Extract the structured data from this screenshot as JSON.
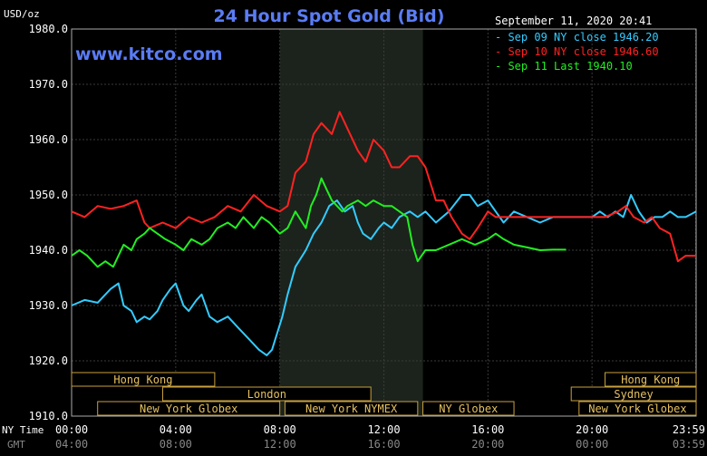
{
  "chart_data": {
    "type": "line",
    "title": "24 Hour Spot Gold (Bid)",
    "unit_label": "USD/oz",
    "watermark": "www.kitco.com",
    "timestamp": "September 11, 2020 20:41",
    "ylim": [
      1910,
      1980
    ],
    "y_ticks": [
      "1980.0",
      "1970.0",
      "1960.0",
      "1950.0",
      "1940.0",
      "1930.0",
      "1920.0",
      "1910.0"
    ],
    "y_tick_values": [
      1980,
      1970,
      1960,
      1950,
      1940,
      1930,
      1920,
      1910
    ],
    "x_row1_label": "NY Time",
    "x_row2_label": "GMT",
    "x_ticks_ny": [
      "00:00",
      "04:00",
      "08:00",
      "12:00",
      "16:00",
      "20:00",
      "23:59"
    ],
    "x_ticks_gmt": [
      "04:00",
      "08:00",
      "12:00",
      "16:00",
      "20:00",
      "00:00",
      "03:59"
    ],
    "x_tick_hours": [
      0,
      4,
      8,
      12,
      16,
      20,
      23.983
    ],
    "highlight_hours": [
      8,
      13.5
    ],
    "legend": [
      {
        "text": "Sep 09 NY close 1946.20",
        "color": "#33ccff"
      },
      {
        "text": "Sep 10 NY close 1946.60",
        "color": "#ff2222"
      },
      {
        "text": "Sep 11 Last 1940.10",
        "color": "#22ee22"
      }
    ],
    "sessions": [
      {
        "label": "Hong Kong",
        "start": 0,
        "end": 5.5,
        "row": 0
      },
      {
        "label": "Hong Kong",
        "start": 20.5,
        "end": 24,
        "row": 0
      },
      {
        "label": "London",
        "start": 3.5,
        "end": 11.5,
        "row": 1
      },
      {
        "label": "Sydney",
        "start": 19.2,
        "end": 24,
        "row": 1
      },
      {
        "label": "New York Globex",
        "start": 1,
        "end": 8,
        "row": 2
      },
      {
        "label": "New York NYMEX",
        "start": 8.2,
        "end": 13.3,
        "row": 2
      },
      {
        "label": "NY Globex",
        "start": 13.5,
        "end": 17,
        "row": 2
      },
      {
        "label": "New York Globex",
        "start": 19.5,
        "end": 24,
        "row": 2
      }
    ],
    "series": [
      {
        "color": "#33ccff",
        "x": [
          0,
          0.5,
          1,
          1.5,
          1.8,
          2,
          2.3,
          2.5,
          2.8,
          3,
          3.3,
          3.5,
          3.8,
          4,
          4.3,
          4.5,
          4.8,
          5,
          5.3,
          5.6,
          6,
          6.4,
          6.8,
          7.2,
          7.5,
          7.7,
          7.9,
          8.1,
          8.3,
          8.6,
          9,
          9.3,
          9.6,
          9.9,
          10.2,
          10.5,
          10.8,
          11,
          11.2,
          11.5,
          11.8,
          12,
          12.3,
          12.6,
          13,
          13.3,
          13.6,
          14,
          14.5,
          15,
          15.3,
          15.6,
          16,
          16.3,
          16.6,
          17,
          17.5,
          18,
          18.5,
          19,
          19.5,
          20,
          20.3,
          20.6,
          20.9,
          21.2,
          21.5,
          21.8,
          22.1,
          22.4,
          22.7,
          23,
          23.3,
          23.6,
          24
        ],
        "y": [
          1930,
          1931,
          1930.5,
          1933,
          1934,
          1930,
          1929,
          1927,
          1928,
          1927.5,
          1929,
          1931,
          1933,
          1934,
          1930,
          1929,
          1931,
          1932,
          1928,
          1927,
          1928,
          1926,
          1924,
          1922,
          1921,
          1922,
          1925,
          1928,
          1932,
          1937,
          1940,
          1943,
          1945,
          1948,
          1949,
          1947,
          1948,
          1945,
          1943,
          1942,
          1944,
          1945,
          1944,
          1946,
          1947,
          1946,
          1947,
          1945,
          1947,
          1950,
          1950,
          1948,
          1949,
          1947,
          1945,
          1947,
          1946,
          1945,
          1946,
          1946,
          1946,
          1946,
          1947,
          1946,
          1947,
          1946,
          1950,
          1947,
          1945,
          1946,
          1946,
          1947,
          1946,
          1946,
          1947
        ]
      },
      {
        "color": "#ff2222",
        "x": [
          0,
          0.5,
          1,
          1.5,
          2,
          2.5,
          2.8,
          3,
          3.5,
          4,
          4.5,
          5,
          5.5,
          6,
          6.5,
          7,
          7.5,
          8,
          8.3,
          8.6,
          9,
          9.3,
          9.6,
          10,
          10.3,
          10.6,
          11,
          11.3,
          11.6,
          12,
          12.3,
          12.6,
          13,
          13.3,
          13.6,
          14,
          14.3,
          14.6,
          15,
          15.3,
          15.6,
          16,
          16.3,
          16.6,
          17,
          17.5,
          18,
          18.5,
          19,
          19.5,
          20,
          20.5,
          21,
          21.3,
          21.6,
          22,
          22.3,
          22.6,
          23,
          23.3,
          23.6,
          24
        ],
        "y": [
          1947,
          1946,
          1948,
          1947.5,
          1948,
          1949,
          1945,
          1944,
          1945,
          1944,
          1946,
          1945,
          1946,
          1948,
          1947,
          1950,
          1948,
          1947,
          1948,
          1954,
          1956,
          1961,
          1963,
          1961,
          1965,
          1962,
          1958,
          1956,
          1960,
          1958,
          1955,
          1955,
          1957,
          1957,
          1955,
          1949,
          1949,
          1946,
          1943,
          1942,
          1944,
          1947,
          1946,
          1946,
          1946,
          1946,
          1946,
          1946,
          1946,
          1946,
          1946,
          1946,
          1947,
          1948,
          1946,
          1945,
          1946,
          1944,
          1943,
          1938,
          1939,
          1939
        ]
      },
      {
        "color": "#22ee22",
        "x": [
          0,
          0.3,
          0.6,
          1,
          1.3,
          1.6,
          2,
          2.3,
          2.5,
          2.8,
          3,
          3.3,
          3.6,
          4,
          4.3,
          4.6,
          5,
          5.3,
          5.6,
          6,
          6.3,
          6.6,
          7,
          7.3,
          7.6,
          8,
          8.3,
          8.6,
          9,
          9.2,
          9.4,
          9.6,
          9.8,
          10,
          10.2,
          10.4,
          10.6,
          11,
          11.3,
          11.6,
          12,
          12.3,
          12.6,
          12.9,
          13.1,
          13.3,
          13.6,
          14,
          14.5,
          15,
          15.5,
          16,
          16.3,
          16.6,
          17,
          17.5,
          18,
          18.5,
          19
        ],
        "y": [
          1939,
          1940,
          1939,
          1937,
          1938,
          1937,
          1941,
          1940,
          1942,
          1943,
          1944,
          1943,
          1942,
          1941,
          1940,
          1942,
          1941,
          1942,
          1944,
          1945,
          1944,
          1946,
          1944,
          1946,
          1945,
          1943,
          1944,
          1947,
          1944,
          1948,
          1950,
          1953,
          1951,
          1949,
          1948,
          1947,
          1948,
          1949,
          1948,
          1949,
          1948,
          1948,
          1947,
          1946,
          1941,
          1938,
          1940,
          1940,
          1941,
          1942,
          1941,
          1942,
          1943,
          1942,
          1941,
          1940.5,
          1940,
          1940.1,
          1940.1
        ]
      }
    ]
  }
}
